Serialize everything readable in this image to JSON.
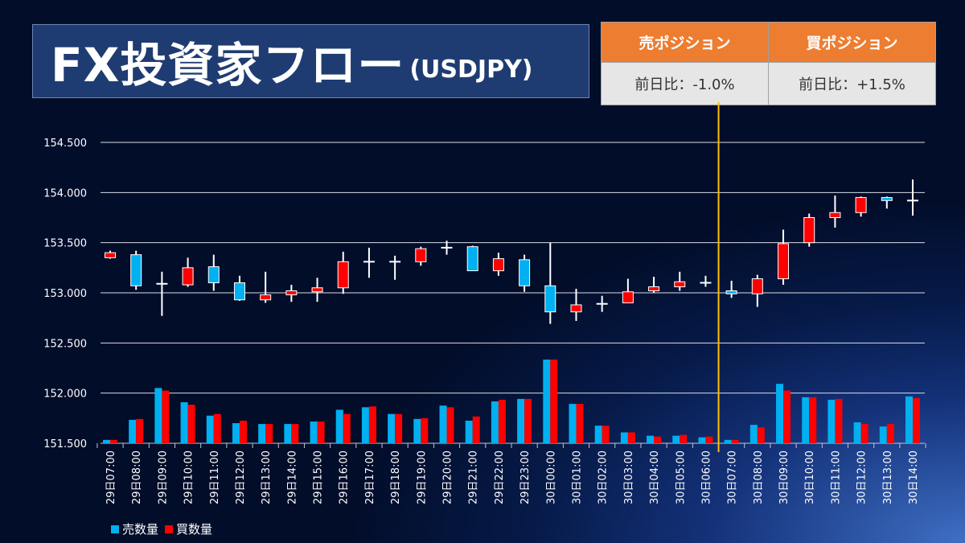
{
  "title": {
    "main": "FX投資家フロー",
    "sub": "(USDJPY)"
  },
  "position_table": {
    "sell_header": "売ポジション",
    "buy_header": "買ポジション",
    "sell_change": "前日比：-1.0%",
    "buy_change": "前日比：+1.5%"
  },
  "colors": {
    "up": "#ff0000",
    "down": "#00b0f0",
    "sell_volume": "#00b0f0",
    "buy_volume": "#ff0000",
    "header": "#ed7d31",
    "divider_line": "#ffc000"
  },
  "chart_data": {
    "type": "candlestick+bar",
    "ylim": [
      151.5,
      154.5
    ],
    "yticks": [
      "151.500",
      "152.000",
      "152.500",
      "153.000",
      "153.500",
      "154.000",
      "154.500"
    ],
    "grid": true,
    "legend_position": "bottom-left",
    "categories": [
      "29日07:00",
      "29日08:00",
      "29日09:00",
      "29日10:00",
      "29日11:00",
      "29日12:00",
      "29日13:00",
      "29日14:00",
      "29日15:00",
      "29日16:00",
      "29日17:00",
      "29日18:00",
      "29日19:00",
      "29日20:00",
      "29日21:00",
      "29日22:00",
      "29日23:00",
      "30日00:00",
      "30日01:00",
      "30日02:00",
      "30日03:00",
      "30日04:00",
      "30日05:00",
      "30日06:00",
      "30日07:00",
      "30日08:00",
      "30日09:00",
      "30日10:00",
      "30日11:00",
      "30日12:00",
      "30日13:00",
      "30日14:00"
    ],
    "ohlc": [
      [
        153.35,
        153.42,
        153.34,
        153.4
      ],
      [
        153.38,
        153.42,
        153.03,
        153.07
      ],
      [
        153.08,
        153.21,
        152.77,
        153.09
      ],
      [
        153.08,
        153.35,
        153.06,
        153.25
      ],
      [
        153.26,
        153.38,
        153.02,
        153.1
      ],
      [
        153.1,
        153.17,
        152.92,
        152.93
      ],
      [
        152.93,
        153.21,
        152.9,
        152.98
      ],
      [
        152.98,
        153.08,
        152.91,
        153.02
      ],
      [
        153.01,
        153.15,
        152.91,
        153.05
      ],
      [
        153.05,
        153.41,
        152.99,
        153.31
      ],
      [
        153.31,
        153.45,
        153.15,
        153.31
      ],
      [
        153.31,
        153.37,
        153.13,
        153.31
      ],
      [
        153.31,
        153.46,
        153.27,
        153.44
      ],
      [
        153.44,
        153.52,
        153.38,
        153.45
      ],
      [
        153.46,
        153.47,
        153.22,
        153.22
      ],
      [
        153.22,
        153.4,
        153.17,
        153.34
      ],
      [
        153.33,
        153.38,
        153.01,
        153.07
      ],
      [
        153.07,
        153.5,
        152.69,
        152.81
      ],
      [
        152.81,
        153.04,
        152.72,
        152.88
      ],
      [
        152.88,
        152.97,
        152.81,
        152.89
      ],
      [
        152.9,
        153.14,
        152.9,
        153.01
      ],
      [
        153.02,
        153.16,
        153.0,
        153.06
      ],
      [
        153.06,
        153.21,
        153.02,
        153.11
      ],
      [
        153.1,
        153.17,
        153.06,
        153.1
      ],
      [
        153.02,
        153.12,
        152.95,
        152.99
      ],
      [
        152.99,
        153.18,
        152.86,
        153.14
      ],
      [
        153.14,
        153.63,
        153.08,
        153.49
      ],
      [
        153.5,
        153.79,
        153.46,
        153.75
      ],
      [
        153.75,
        153.97,
        153.65,
        153.8
      ],
      [
        153.8,
        153.96,
        153.76,
        153.95
      ],
      [
        153.95,
        153.96,
        153.84,
        153.92
      ],
      [
        153.92,
        154.13,
        153.77,
        153.92
      ]
    ],
    "series": [
      {
        "name": "売数量",
        "values": [
          4,
          28,
          66,
          49,
          33,
          24,
          23,
          23,
          26,
          40,
          43,
          35,
          29,
          45,
          27,
          50,
          53,
          100,
          47,
          21,
          13,
          9,
          9,
          7,
          4,
          22,
          71,
          55,
          52,
          25,
          20,
          56
        ]
      },
      {
        "name": "買数量",
        "values": [
          4,
          29,
          63,
          46,
          35,
          27,
          23,
          23,
          26,
          35,
          44,
          35,
          30,
          43,
          32,
          52,
          53,
          100,
          47,
          21,
          13,
          8,
          10,
          8,
          4,
          19,
          63,
          55,
          53,
          23,
          23,
          54
        ]
      }
    ],
    "volume_unit": "relative (max = 100)",
    "marker_between": [
      "30日06:00",
      "30日07:00"
    ]
  }
}
